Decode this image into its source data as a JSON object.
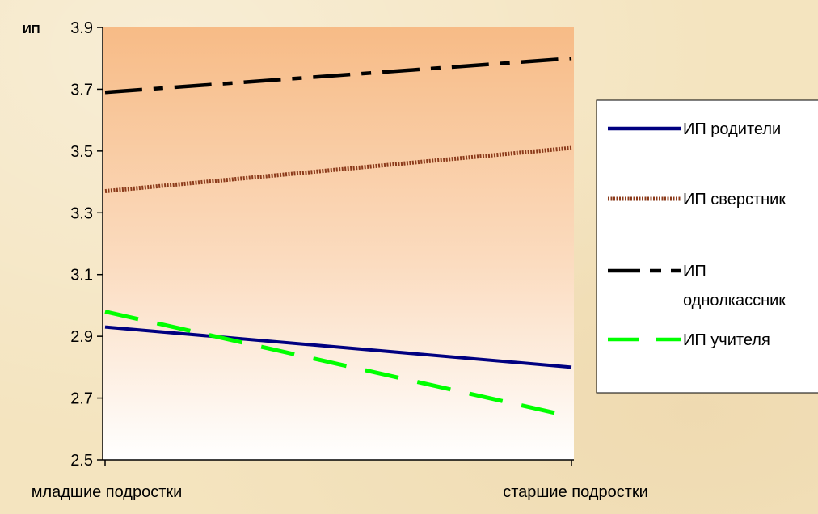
{
  "chart_data": {
    "type": "line",
    "title": "",
    "xlabel": "",
    "ylabel": "ИП",
    "categories": [
      "младшие подростки",
      "старшие подростки"
    ],
    "ylim": [
      2.5,
      3.9
    ],
    "yticks": [
      "2.5",
      "2.7",
      "2.9",
      "3.1",
      "3.3",
      "3.5",
      "3.7",
      "3.9"
    ],
    "grid": false,
    "legend_position": "right",
    "series": [
      {
        "name": "ИП родители",
        "values": [
          2.93,
          2.8
        ],
        "color": "#000080",
        "style": "solid"
      },
      {
        "name": "ИП сверстник",
        "values": [
          3.37,
          3.51
        ],
        "color": "#8b3a1a",
        "style": "hatched"
      },
      {
        "name": "ИП однолкассник",
        "name_lines": [
          "ИП",
          "однолкассник"
        ],
        "values": [
          3.69,
          3.8
        ],
        "color": "#000000",
        "style": "dashdot"
      },
      {
        "name": "ИП учителя",
        "values": [
          2.98,
          2.64
        ],
        "color": "#00ff00",
        "style": "dashed"
      }
    ]
  }
}
